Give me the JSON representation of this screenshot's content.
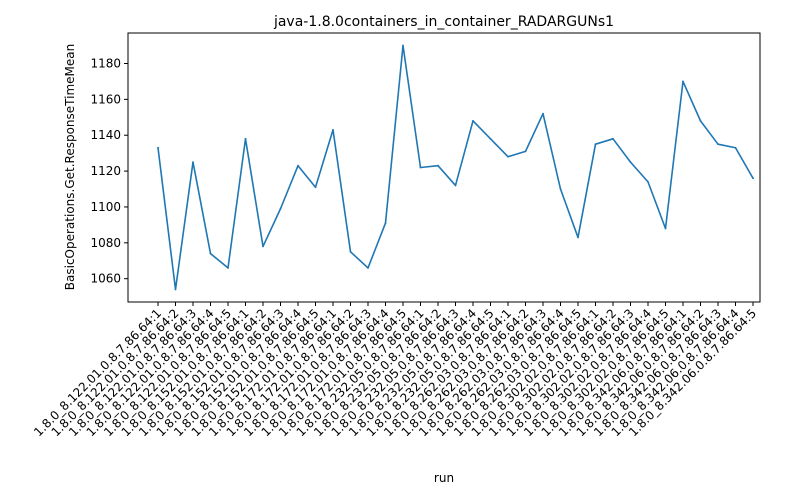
{
  "chart_data": {
    "type": "line",
    "title": "java-1.8.0containers_in_container_RADARGUNs1",
    "xlabel": "run",
    "ylabel": "BasicOperations.Get.ResponseTimeMean",
    "ylim": [
      1047,
      1197
    ],
    "yticks": [
      1060,
      1080,
      1100,
      1120,
      1140,
      1160,
      1180
    ],
    "grid": false,
    "legend": "none",
    "line_color": "#1f77b4",
    "categories": [
      "1.8.0_8.122.01.0.8.7.86.64:1",
      "1.8.0_8.122.01.0.8.7.86.64:2",
      "1.8.0_8.122.01.0.8.7.86.64:3",
      "1.8.0_8.122.01.0.8.7.86.64:4",
      "1.8.0_8.122.01.0.8.7.86.64:5",
      "1.8.0_8.152.01.0.8.7.86.64:1",
      "1.8.0_8.152.01.0.8.7.86.64:2",
      "1.8.0_8.152.01.0.8.7.86.64:3",
      "1.8.0_8.152.01.0.8.7.86.64:4",
      "1.8.0_8.152.01.0.8.7.86.64:5",
      "1.8.0_8.172.01.0.8.7.86.64:1",
      "1.8.0_8.172.01.0.8.7.86.64:2",
      "1.8.0_8.172.01.0.8.7.86.64:3",
      "1.8.0_8.172.01.0.8.7.86.64:4",
      "1.8.0_8.172.01.0.8.7.86.64:5",
      "1.8.0_8.232.05.0.8.7.86.64:1",
      "1.8.0_8.232.05.0.8.7.86.64:2",
      "1.8.0_8.232.05.0.8.7.86.64:3",
      "1.8.0_8.232.05.0.8.7.86.64:4",
      "1.8.0_8.232.05.0.8.7.86.64:5",
      "1.8.0_8.262.03.0.8.7.86.64:1",
      "1.8.0_8.262.03.0.8.7.86.64:2",
      "1.8.0_8.262.03.0.8.7.86.64:3",
      "1.8.0_8.262.03.0.8.7.86.64:4",
      "1.8.0_8.262.03.0.8.7.86.64:5",
      "1.8.0_8.302.02.0.8.7.86.64:1",
      "1.8.0_8.302.02.0.8.7.86.64:2",
      "1.8.0_8.302.02.0.8.7.86.64:3",
      "1.8.0_8.302.02.0.8.7.86.64:4",
      "1.8.0_8.302.02.0.8.7.86.64:5",
      "1.8.0_8.342.06.0.8.7.86.64:1",
      "1.8.0_8.342.06.0.8.7.86.64:2",
      "1.8.0_8.342.06.0.8.7.86.64:3",
      "1.8.0_8.342.06.0.8.7.86.64:4",
      "1.8.0_8.342.06.0.8.7.86.64:5"
    ],
    "series": [
      {
        "values": [
          1133,
          1054,
          1125,
          1074,
          1066,
          1138,
          1078,
          1099,
          1123,
          1111,
          1143,
          1075,
          1066,
          1091,
          1190,
          1122,
          1123,
          1112,
          1148,
          1138,
          1128,
          1131,
          1152,
          1110,
          1083,
          1135,
          1138,
          1125,
          1114,
          1088,
          1170,
          1148,
          1135,
          1133,
          1116
        ]
      }
    ]
  }
}
